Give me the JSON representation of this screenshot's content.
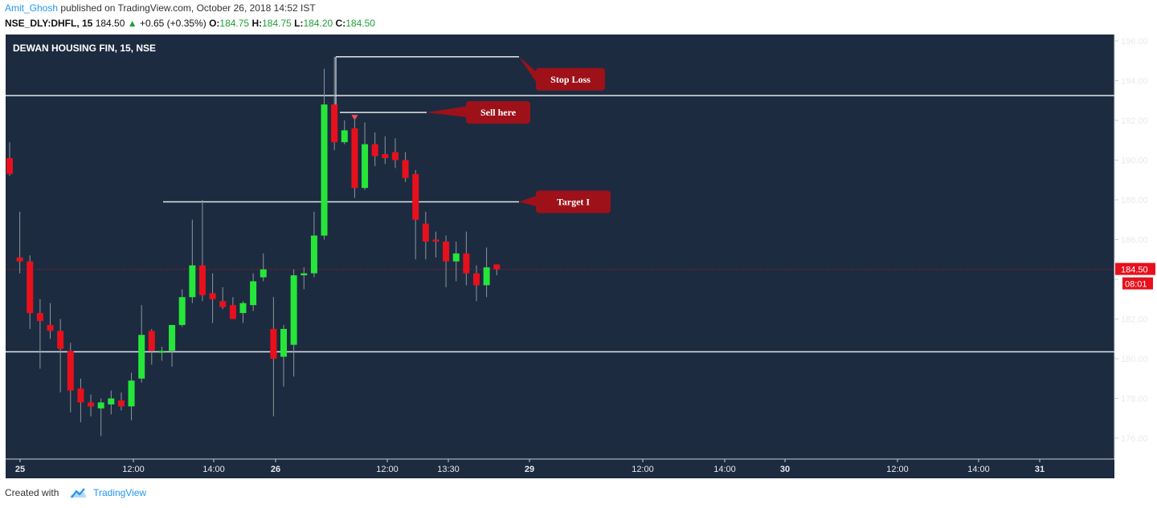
{
  "header": {
    "author": "Amit_Ghosh",
    "published_text": "published on TradingView.com, October 26, 2018 14:52 IST",
    "symbol": "NSE_DLY:DHFL, 15",
    "last_price": "184.50",
    "change_arrow": "▲",
    "change": "+0.65 (+0.35%)",
    "open_label": "O:",
    "open": "184.75",
    "high_label": "H:",
    "high": "184.75",
    "low_label": "L:",
    "low": "184.20",
    "close_label": "C:",
    "close": "184.50"
  },
  "footer": {
    "created_with": "Created with",
    "brand": "TradingView",
    "brand_icon": "tradingview-cloud-icon"
  },
  "colors": {
    "background": "#1d2b40",
    "up": "#26e63a",
    "down": "#e8101c",
    "level_line": "#e0e6ea",
    "callout": "#9e1119",
    "price_tag": "#e8101c"
  },
  "chart_data": {
    "type": "candlestick",
    "title": "DEWAN HOUSING FIN, 15, NSE",
    "y_ticks": [
      "176.00",
      "178.00",
      "180.00",
      "182.00",
      "184.00",
      "186.00",
      "188.00",
      "190.00",
      "192.00",
      "194.00",
      "196.00"
    ],
    "ylim": [
      175,
      196.6
    ],
    "x_ticks": [
      "25",
      "12:00",
      "14:00",
      "26",
      "12:00",
      "13:30",
      "29",
      "12:00",
      "14:00",
      "30",
      "12:00",
      "14:00",
      "31"
    ],
    "bold_x_ticks": [
      "25",
      "26",
      "29",
      "30",
      "31"
    ],
    "current_price": "184.50",
    "countdown": "08:01",
    "candles": [
      {
        "o": 190.1,
        "h": 190.9,
        "l": 189.2,
        "c": 189.3
      },
      {
        "o": 185.1,
        "h": 187.4,
        "l": 184.3,
        "c": 184.9
      },
      {
        "o": 184.9,
        "h": 185.2,
        "l": 181.5,
        "c": 182.3
      },
      {
        "o": 182.3,
        "h": 183.0,
        "l": 179.5,
        "c": 181.9
      },
      {
        "o": 181.7,
        "h": 182.8,
        "l": 181.0,
        "c": 181.4
      },
      {
        "o": 181.4,
        "h": 182.0,
        "l": 178.3,
        "c": 180.5
      },
      {
        "o": 180.4,
        "h": 180.8,
        "l": 177.3,
        "c": 178.4
      },
      {
        "o": 178.5,
        "h": 179.0,
        "l": 176.8,
        "c": 177.8
      },
      {
        "o": 177.8,
        "h": 178.2,
        "l": 177.1,
        "c": 177.6
      },
      {
        "o": 177.5,
        "h": 178.0,
        "l": 176.1,
        "c": 177.8
      },
      {
        "o": 177.7,
        "h": 178.4,
        "l": 177.2,
        "c": 178.0
      },
      {
        "o": 177.9,
        "h": 178.3,
        "l": 177.4,
        "c": 177.6
      },
      {
        "o": 177.6,
        "h": 179.3,
        "l": 176.9,
        "c": 178.9
      },
      {
        "o": 179.0,
        "h": 182.7,
        "l": 178.8,
        "c": 181.2
      },
      {
        "o": 181.4,
        "h": 181.5,
        "l": 179.7,
        "c": 180.4
      },
      {
        "o": 180.3,
        "h": 180.6,
        "l": 179.9,
        "c": 180.4
      },
      {
        "o": 180.4,
        "h": 181.6,
        "l": 179.6,
        "c": 181.7
      },
      {
        "o": 181.7,
        "h": 183.5,
        "l": 181.6,
        "c": 183.1
      },
      {
        "o": 183.1,
        "h": 187.0,
        "l": 182.8,
        "c": 184.7
      },
      {
        "o": 184.7,
        "h": 188.0,
        "l": 182.9,
        "c": 183.2
      },
      {
        "o": 183.3,
        "h": 184.3,
        "l": 181.8,
        "c": 183.0
      },
      {
        "o": 182.9,
        "h": 183.6,
        "l": 182.5,
        "c": 182.6
      },
      {
        "o": 182.7,
        "h": 183.1,
        "l": 182.0,
        "c": 182.0
      },
      {
        "o": 182.3,
        "h": 182.9,
        "l": 181.8,
        "c": 182.8
      },
      {
        "o": 182.7,
        "h": 184.3,
        "l": 182.4,
        "c": 183.9
      },
      {
        "o": 184.1,
        "h": 185.3,
        "l": 183.9,
        "c": 184.5
      },
      {
        "o": 181.5,
        "h": 183.1,
        "l": 177.1,
        "c": 180.0
      },
      {
        "o": 180.1,
        "h": 181.7,
        "l": 178.6,
        "c": 181.5
      },
      {
        "o": 180.7,
        "h": 184.5,
        "l": 179.1,
        "c": 184.2
      },
      {
        "o": 184.2,
        "h": 184.6,
        "l": 183.5,
        "c": 184.3
      },
      {
        "o": 184.3,
        "h": 187.4,
        "l": 184.1,
        "c": 186.2
      },
      {
        "o": 186.2,
        "h": 194.6,
        "l": 186.0,
        "c": 192.8
      },
      {
        "o": 192.8,
        "h": 195.2,
        "l": 190.5,
        "c": 190.9
      },
      {
        "o": 190.9,
        "h": 192.0,
        "l": 190.8,
        "c": 191.5
      },
      {
        "o": 191.6,
        "h": 192.0,
        "l": 188.1,
        "c": 188.6
      },
      {
        "o": 188.6,
        "h": 191.9,
        "l": 188.5,
        "c": 190.8
      },
      {
        "o": 190.8,
        "h": 191.4,
        "l": 189.7,
        "c": 190.2
      },
      {
        "o": 190.3,
        "h": 191.2,
        "l": 189.8,
        "c": 190.1
      },
      {
        "o": 190.4,
        "h": 191.1,
        "l": 189.6,
        "c": 190.0
      },
      {
        "o": 190.0,
        "h": 190.4,
        "l": 188.9,
        "c": 189.1
      },
      {
        "o": 189.3,
        "h": 189.5,
        "l": 185.0,
        "c": 187.0
      },
      {
        "o": 186.8,
        "h": 187.4,
        "l": 185.0,
        "c": 185.9
      },
      {
        "o": 186.0,
        "h": 186.4,
        "l": 185.1,
        "c": 185.9
      },
      {
        "o": 185.9,
        "h": 186.2,
        "l": 183.6,
        "c": 184.9
      },
      {
        "o": 184.9,
        "h": 185.9,
        "l": 183.9,
        "c": 185.3
      },
      {
        "o": 185.3,
        "h": 186.4,
        "l": 183.7,
        "c": 184.3
      },
      {
        "o": 184.3,
        "h": 184.7,
        "l": 182.9,
        "c": 183.7
      },
      {
        "o": 183.7,
        "h": 185.6,
        "l": 183.1,
        "c": 184.6
      },
      {
        "o": 184.75,
        "h": 184.75,
        "l": 184.2,
        "c": 184.5
      }
    ],
    "horizontal_levels": [
      {
        "name": "upper-level",
        "price": 193.25,
        "span": "full"
      },
      {
        "name": "stop-loss-level",
        "price": 195.2,
        "span": "ray"
      },
      {
        "name": "sell-level",
        "price": 192.4,
        "span": "ray"
      },
      {
        "name": "target-level",
        "price": 187.9,
        "span": "ray"
      },
      {
        "name": "support-level",
        "price": 180.35,
        "span": "full"
      }
    ],
    "annotations": [
      {
        "text": "Stop Loss",
        "price": 195.2
      },
      {
        "text": "Sell here",
        "price": 192.4
      },
      {
        "text": "Target I",
        "price": 187.9
      }
    ]
  }
}
